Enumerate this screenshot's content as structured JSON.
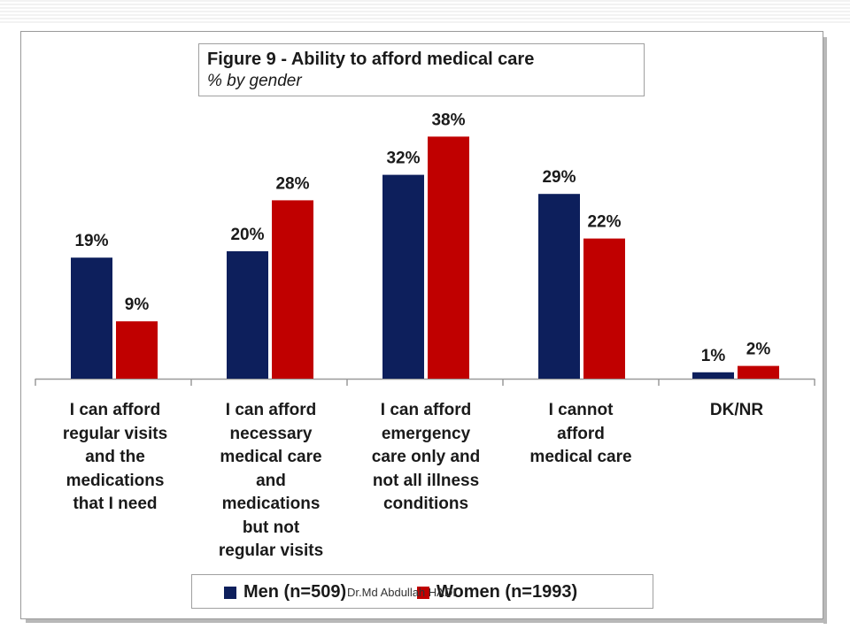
{
  "chart_data": {
    "type": "bar",
    "title": "Figure 9 - Ability to afford medical care",
    "subtitle": "% by gender",
    "categories": [
      [
        "I can afford",
        "regular visits",
        "and the",
        "medications",
        "that I need"
      ],
      [
        "I can afford",
        "necessary",
        "medical care",
        "and",
        "medications",
        "but not",
        "regular visits"
      ],
      [
        "I can afford",
        "emergency",
        "care only and",
        "not all illness",
        "conditions"
      ],
      [
        "I cannot",
        "afford",
        "medical care"
      ],
      [
        "DK/NR"
      ]
    ],
    "series": [
      {
        "name": "Men (n=509)",
        "values": [
          19,
          20,
          32,
          29,
          1
        ],
        "labels": [
          "19%",
          "20%",
          "32%",
          "29%",
          "1%"
        ],
        "color": "#0d1f5c"
      },
      {
        "name": "Women (n=1993)",
        "values": [
          9,
          28,
          38,
          22,
          2
        ],
        "labels": [
          "9%",
          "28%",
          "38%",
          "22%",
          "2%"
        ],
        "color": "#c00000"
      }
    ],
    "ylim": [
      0,
      40
    ],
    "grid": false,
    "legend": "bottom"
  },
  "watermark": "Dr.Md Abdullah HADI"
}
